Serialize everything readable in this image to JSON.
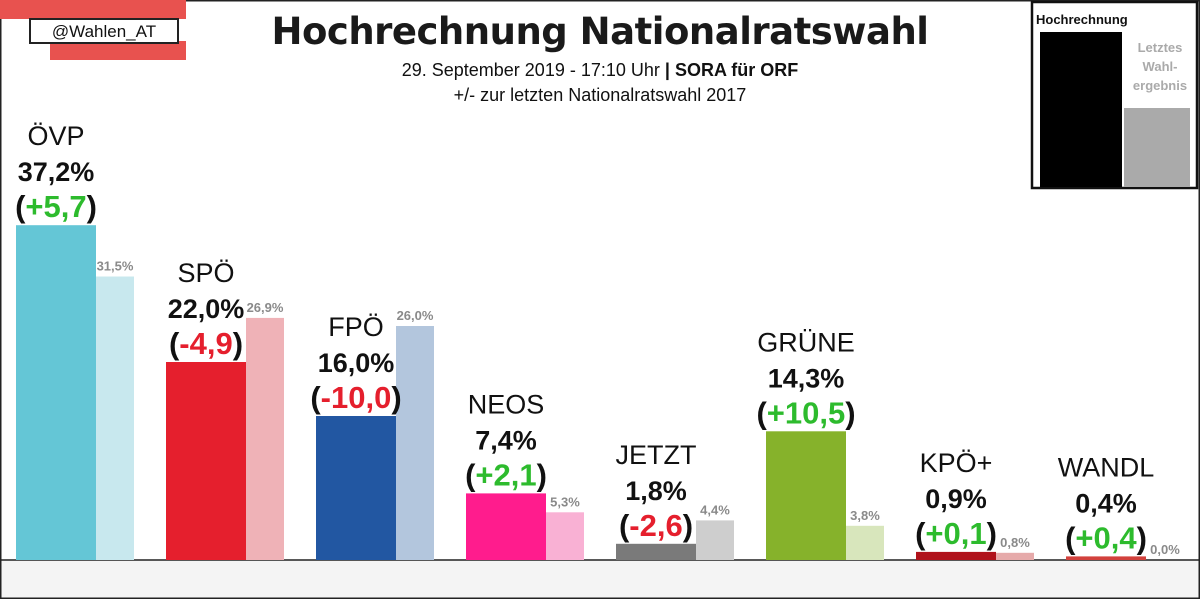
{
  "header": {
    "title": "Hochrechnung Nationalratswahl",
    "subtitle_date": "29. September 2019 - 17:10 Uhr",
    "subtitle_sep": " | ",
    "subtitle_source": "SORA für ORF",
    "subtitle_change": "+/- zur letzten Nationalratswahl 2017"
  },
  "handle": "@Wahlen_AT",
  "legend": {
    "current_label": "Hochrechnung",
    "previous_label_lines": [
      "Letztes",
      "Wahl-",
      "ergebnis"
    ],
    "current_color": "#000000",
    "previous_color": "#aaaaaa"
  },
  "chart_data": {
    "type": "bar",
    "categories": [
      "ÖVP",
      "SPÖ",
      "FPÖ",
      "NEOS",
      "JETZT",
      "GRÜNE",
      "KPÖ+",
      "WANDL"
    ],
    "series": [
      {
        "name": "Hochrechnung",
        "values": [
          37.2,
          22.0,
          16.0,
          7.4,
          1.8,
          14.3,
          0.9,
          0.4
        ]
      },
      {
        "name": "Letztes Wahlergebnis",
        "values": [
          31.5,
          26.9,
          26.0,
          5.3,
          4.4,
          3.8,
          0.8,
          0.0
        ]
      }
    ],
    "current_labels": [
      "37,2%",
      "22,0%",
      "16,0%",
      "7,4%",
      "1,8%",
      "14,3%",
      "0,9%",
      "0,4%"
    ],
    "previous_labels": [
      "31,5%",
      "26,9%",
      "26,0%",
      "5,3%",
      "4,4%",
      "3,8%",
      "0,8%",
      "0,0%"
    ],
    "change_labels": [
      "+5,7",
      "-4,9",
      "-10,0",
      "+2,1",
      "-2,6",
      "+10,5",
      "+0,1",
      "+0,4"
    ],
    "colors_current": [
      "#64c6d6",
      "#e51f2d",
      "#2257a2",
      "#ff1c8d",
      "#7a7a7a",
      "#86b22b",
      "#b0121b",
      "#d2413c"
    ],
    "colors_previous": [
      "#c8e8ee",
      "#efb2b7",
      "#b3c6dd",
      "#f9b1d4",
      "#cecece",
      "#d8e6bc",
      "#e6aaaa",
      "#e6aaaa"
    ],
    "change_positive_color": "#2dbb2d",
    "change_negative_color": "#e51f2d",
    "ylim": [
      0,
      40
    ],
    "grid": false,
    "legend_position": "top-right"
  }
}
